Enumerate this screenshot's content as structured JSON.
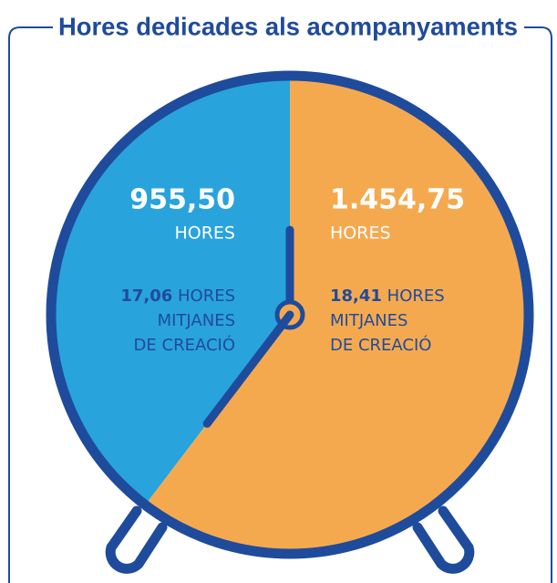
{
  "chart_data": {
    "type": "pie",
    "title": "Hores dedicades als acompanyaments",
    "values": [
      955.5,
      1454.75
    ],
    "value_labels": [
      "955,50",
      "1.454,75"
    ],
    "colors": [
      "#29a3dc",
      "#f5a94f"
    ],
    "units": [
      "HORES",
      "HORES"
    ],
    "notes": [
      {
        "figure": "17,06",
        "lines": [
          "HORES",
          "MITJANES",
          "DE CREACIÓ"
        ]
      },
      {
        "figure": "18,41",
        "lines": [
          "HORES",
          "MITJANES",
          "DE CREACIÓ"
        ]
      }
    ]
  }
}
